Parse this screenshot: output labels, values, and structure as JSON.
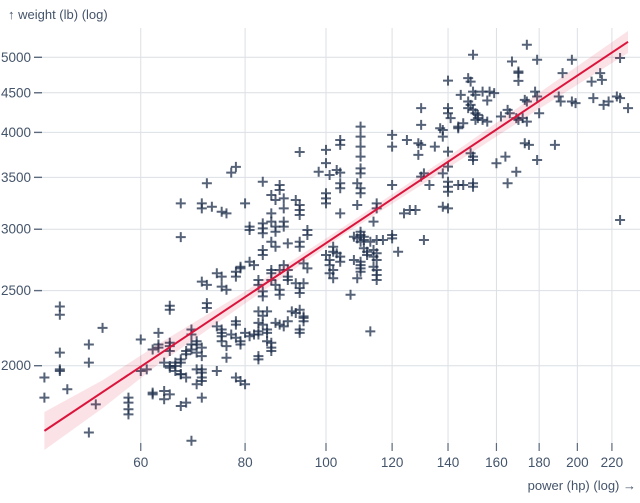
{
  "chart_data": {
    "type": "scatter",
    "x_axis": {
      "label": "power (hp) (log) →",
      "scale": "log",
      "ticks": [
        60,
        80,
        100,
        120,
        140,
        160,
        180,
        200,
        220
      ],
      "domain": [
        45,
        238
      ]
    },
    "y_axis": {
      "label": "↑ weight (lb) (log)",
      "scale": "log",
      "ticks": [
        2000,
        2500,
        3000,
        3500,
        4000,
        4500,
        5000
      ],
      "domain": [
        1550,
        5350
      ]
    },
    "marker": "plus",
    "grid": true,
    "colors": {
      "marker": "#1c2e4a",
      "marker_opacity": 0.75,
      "line": "#dc143c",
      "band_fill": "rgba(220,20,60,0.12)",
      "grid_line": "#dcdfe4",
      "tick": "#5c6a7d",
      "text": "#44546a"
    },
    "regression": {
      "type": "linear-regression (log-log)",
      "endpoints": [
        [
          46,
          1648
        ],
        [
          230,
          5236
        ]
      ],
      "confidence_band": [
        [
          46,
          1557,
          1743
        ],
        [
          54,
          1762,
          1915
        ],
        [
          63,
          2009,
          2133
        ],
        [
          80,
          2406,
          2493
        ],
        [
          105,
          2951,
          3022
        ],
        [
          139,
          3581,
          3700
        ],
        [
          180,
          4291,
          4501
        ],
        [
          230,
          5065,
          5406
        ]
      ]
    },
    "points": [
      [
        93,
        3774
      ],
      [
        100,
        3797
      ],
      [
        100,
        3651
      ],
      [
        104,
        3854
      ],
      [
        78,
        3611
      ],
      [
        150,
        5038
      ],
      [
        140,
        4666
      ],
      [
        148,
        4700
      ],
      [
        149,
        4652
      ],
      [
        145,
        4472
      ],
      [
        150,
        4516
      ],
      [
        151,
        4472
      ],
      [
        154,
        4516
      ],
      [
        156,
        4397
      ],
      [
        148,
        4384
      ],
      [
        149,
        4341
      ],
      [
        130,
        4299
      ],
      [
        140,
        4299
      ],
      [
        140,
        4235
      ],
      [
        141,
        4173
      ],
      [
        130,
        4090
      ],
      [
        137,
        4050
      ],
      [
        138,
        4029
      ],
      [
        144,
        4069
      ],
      [
        144,
        4050
      ],
      [
        146,
        4111
      ],
      [
        148,
        4299
      ],
      [
        150,
        4277
      ],
      [
        151,
        4235
      ],
      [
        151,
        4151
      ],
      [
        152,
        4214
      ],
      [
        152,
        4173
      ],
      [
        154,
        4151
      ],
      [
        156,
        4130
      ],
      [
        110,
        4069
      ],
      [
        110,
        3950
      ],
      [
        110,
        3834
      ],
      [
        104,
        3911
      ],
      [
        120,
        3970
      ],
      [
        120,
        3834
      ],
      [
        125,
        3911
      ],
      [
        129,
        3873
      ],
      [
        130,
        3854
      ],
      [
        129,
        3741
      ],
      [
        135,
        3834
      ],
      [
        138,
        3950
      ],
      [
        140,
        3778
      ],
      [
        140,
        3613
      ],
      [
        149,
        3760
      ],
      [
        150,
        3722
      ],
      [
        150,
        3685
      ],
      [
        110,
        3722
      ],
      [
        110,
        3595
      ],
      [
        174,
        5190
      ],
      [
        167,
        4938
      ],
      [
        179,
        4963
      ],
      [
        170,
        4793
      ],
      [
        170,
        4662
      ],
      [
        170,
        4774
      ],
      [
        197,
        4963
      ],
      [
        225,
        4990
      ],
      [
        192,
        4770
      ],
      [
        213,
        4770
      ],
      [
        208,
        4652
      ],
      [
        214,
        4676
      ],
      [
        157,
        4516
      ],
      [
        159,
        4495
      ],
      [
        178,
        4516
      ],
      [
        179,
        4450
      ],
      [
        173,
        4406
      ],
      [
        174,
        4384
      ],
      [
        190,
        4450
      ],
      [
        191,
        4384
      ],
      [
        197,
        4384
      ],
      [
        199,
        4363
      ],
      [
        209,
        4429
      ],
      [
        215,
        4341
      ],
      [
        218,
        4384
      ],
      [
        223,
        4450
      ],
      [
        225,
        4429
      ],
      [
        230,
        4299
      ],
      [
        165,
        4277
      ],
      [
        166,
        4235
      ],
      [
        169,
        4173
      ],
      [
        170,
        4151
      ],
      [
        172,
        4173
      ],
      [
        174,
        4130
      ],
      [
        180,
        4235
      ],
      [
        162,
        4193
      ],
      [
        173,
        3873
      ],
      [
        175,
        3854
      ],
      [
        188,
        3854
      ],
      [
        164,
        3722
      ],
      [
        179,
        3685
      ],
      [
        160,
        3650
      ],
      [
        67,
        3240
      ],
      [
        67,
        2930
      ],
      [
        65,
        2390
      ],
      [
        48,
        2385
      ],
      [
        77,
        3549
      ],
      [
        72,
        3439
      ],
      [
        84,
        3455
      ],
      [
        88,
        3421
      ],
      [
        88,
        3371
      ],
      [
        98,
        3559
      ],
      [
        101,
        3524
      ],
      [
        104,
        3549
      ],
      [
        86,
        3321
      ],
      [
        87,
        3272
      ],
      [
        89,
        3288
      ],
      [
        89,
        3192
      ],
      [
        71,
        3240
      ],
      [
        71,
        3192
      ],
      [
        73,
        3207
      ],
      [
        75,
        3160
      ],
      [
        76,
        3145
      ],
      [
        80,
        3240
      ],
      [
        92,
        3272
      ],
      [
        93,
        3224
      ],
      [
        93,
        3176
      ],
      [
        93,
        3129
      ],
      [
        100,
        3338
      ],
      [
        100,
        3288
      ],
      [
        100,
        3240
      ],
      [
        103,
        3577
      ],
      [
        81,
        3023
      ],
      [
        81,
        2993
      ],
      [
        84,
        3053
      ],
      [
        84,
        3008
      ],
      [
        84,
        2964
      ],
      [
        86,
        3145
      ],
      [
        86,
        3068
      ],
      [
        87,
        3023
      ],
      [
        87,
        2978
      ],
      [
        89,
        3068
      ],
      [
        89,
        3023
      ],
      [
        90,
        2877
      ],
      [
        86,
        2891
      ],
      [
        87,
        2848
      ],
      [
        84,
        2821
      ],
      [
        84,
        2779
      ],
      [
        95,
        2993
      ],
      [
        95,
        2949
      ],
      [
        102,
        2848
      ],
      [
        102,
        2806
      ],
      [
        93,
        2891
      ],
      [
        93,
        2848
      ],
      [
        74,
        2632
      ],
      [
        75,
        2606
      ],
      [
        71,
        2568
      ],
      [
        72,
        2543
      ],
      [
        78,
        2606
      ],
      [
        78,
        2644
      ],
      [
        79,
        2671
      ],
      [
        79,
        2684
      ],
      [
        81,
        2724
      ],
      [
        82,
        2697
      ],
      [
        72,
        2409
      ],
      [
        72,
        2374
      ],
      [
        75,
        2530
      ],
      [
        76,
        2506
      ],
      [
        83,
        2580
      ],
      [
        83,
        2543
      ],
      [
        84,
        2494
      ],
      [
        84,
        2457
      ],
      [
        86,
        2658
      ],
      [
        86,
        2632
      ],
      [
        86,
        2580
      ],
      [
        87,
        2543
      ],
      [
        88,
        2506
      ],
      [
        88,
        2469
      ],
      [
        88,
        2658
      ],
      [
        89,
        2697
      ],
      [
        90,
        2606
      ],
      [
        90,
        2580
      ],
      [
        90,
        2658
      ],
      [
        92,
        2555
      ],
      [
        93,
        2518
      ],
      [
        93,
        2482
      ],
      [
        94,
        2555
      ],
      [
        94,
        2711
      ],
      [
        95,
        2671
      ],
      [
        100,
        2779
      ],
      [
        101,
        2738
      ],
      [
        101,
        2697
      ],
      [
        102,
        2658
      ],
      [
        101,
        2632
      ],
      [
        102,
        2593
      ],
      [
        103,
        2793
      ],
      [
        110,
        3542
      ],
      [
        104,
        3439
      ],
      [
        104,
        3388
      ],
      [
        109,
        3439
      ],
      [
        110,
        3388
      ],
      [
        110,
        3338
      ],
      [
        120,
        3421
      ],
      [
        130,
        3507
      ],
      [
        131,
        3542
      ],
      [
        133,
        3421
      ],
      [
        138,
        3542
      ],
      [
        140,
        3455
      ],
      [
        140,
        3404
      ],
      [
        140,
        3354
      ],
      [
        144,
        3421
      ],
      [
        146,
        3421
      ],
      [
        150,
        3439
      ],
      [
        150,
        3404
      ],
      [
        109,
        3224
      ],
      [
        115,
        3240
      ],
      [
        115,
        3192
      ],
      [
        114,
        3068
      ],
      [
        104,
        3145
      ],
      [
        124,
        3145
      ],
      [
        126,
        3176
      ],
      [
        128,
        3176
      ],
      [
        138,
        3207
      ],
      [
        140,
        3192
      ],
      [
        108,
        2934
      ],
      [
        109,
        2920
      ],
      [
        110,
        2949
      ],
      [
        110,
        2978
      ],
      [
        111,
        2934
      ],
      [
        111,
        2906
      ],
      [
        110,
        2891
      ],
      [
        113,
        2891
      ],
      [
        115,
        2906
      ],
      [
        117,
        2906
      ],
      [
        120,
        2949
      ],
      [
        120,
        2920
      ],
      [
        131,
        2906
      ],
      [
        111,
        2835
      ],
      [
        112,
        2806
      ],
      [
        112,
        2779
      ],
      [
        114,
        2821
      ],
      [
        115,
        2793
      ],
      [
        122,
        2806
      ],
      [
        104,
        2765
      ],
      [
        104,
        2724
      ],
      [
        108,
        2738
      ],
      [
        110,
        2724
      ],
      [
        110,
        2697
      ],
      [
        110,
        2671
      ],
      [
        110,
        2644
      ],
      [
        114,
        2765
      ],
      [
        115,
        2738
      ],
      [
        114,
        2684
      ],
      [
        115,
        2658
      ],
      [
        115,
        2619
      ],
      [
        115,
        2580
      ],
      [
        109,
        2593
      ],
      [
        107,
        2469
      ],
      [
        169,
        3559
      ],
      [
        165,
        3439
      ],
      [
        225,
        3083
      ],
      [
        48,
        2327
      ],
      [
        54,
        2238
      ],
      [
        52,
        2130
      ],
      [
        52,
        2018
      ],
      [
        48,
        2079
      ],
      [
        48,
        1978
      ],
      [
        48,
        1969
      ],
      [
        46,
        1931
      ],
      [
        49,
        1865
      ],
      [
        46,
        1819
      ],
      [
        53,
        1783
      ],
      [
        60,
        2162
      ],
      [
        63,
        2205
      ],
      [
        63,
        2130
      ],
      [
        62,
        2099
      ],
      [
        63,
        2110
      ],
      [
        61,
        1978
      ],
      [
        60,
        1969
      ],
      [
        65,
        2362
      ],
      [
        65,
        2141
      ],
      [
        65,
        2120
      ],
      [
        65,
        2089
      ],
      [
        64,
        2018
      ],
      [
        65,
        1998
      ],
      [
        65,
        1988
      ],
      [
        66,
        2018
      ],
      [
        66,
        1998
      ],
      [
        66,
        1969
      ],
      [
        67,
        1950
      ],
      [
        67,
        2038
      ],
      [
        67,
        2018
      ],
      [
        68,
        2089
      ],
      [
        68,
        2069
      ],
      [
        67,
        1950
      ],
      [
        68,
        1931
      ],
      [
        62,
        1846
      ],
      [
        62,
        1837
      ],
      [
        64,
        1855
      ],
      [
        65,
        1837
      ],
      [
        64,
        1810
      ],
      [
        58,
        1819
      ],
      [
        58,
        1792
      ],
      [
        58,
        1757
      ],
      [
        58,
        1731
      ],
      [
        52,
        1640
      ],
      [
        68,
        1792
      ],
      [
        67,
        1774
      ],
      [
        83,
        2350
      ],
      [
        84,
        2320
      ],
      [
        85,
        2350
      ],
      [
        91,
        2350
      ],
      [
        92,
        2339
      ],
      [
        93,
        2362
      ],
      [
        94,
        2316
      ],
      [
        94,
        2282
      ],
      [
        94,
        2305
      ],
      [
        78,
        2282
      ],
      [
        78,
        2260
      ],
      [
        83,
        2271
      ],
      [
        84,
        2260
      ],
      [
        87,
        2271
      ],
      [
        88,
        2260
      ],
      [
        89,
        2248
      ],
      [
        90,
        2282
      ],
      [
        74,
        2248
      ],
      [
        75,
        2227
      ],
      [
        75,
        2205
      ],
      [
        75,
        2183
      ],
      [
        75,
        2151
      ],
      [
        76,
        2120
      ],
      [
        77,
        2194
      ],
      [
        78,
        2173
      ],
      [
        79,
        2151
      ],
      [
        79,
        2130
      ],
      [
        80,
        2205
      ],
      [
        81,
        2183
      ],
      [
        82,
        2194
      ],
      [
        83,
        2194
      ],
      [
        83,
        2215
      ],
      [
        85,
        2205
      ],
      [
        85,
        2227
      ],
      [
        93,
        2227
      ],
      [
        93,
        2205
      ],
      [
        85,
        2151
      ],
      [
        86,
        2141
      ],
      [
        86,
        2110
      ],
      [
        86,
        2089
      ],
      [
        83,
        2058
      ],
      [
        83,
        2038
      ],
      [
        76,
        2048
      ],
      [
        70,
        2151
      ],
      [
        70,
        2130
      ],
      [
        71,
        2110
      ],
      [
        70,
        2079
      ],
      [
        71,
        2058
      ],
      [
        69,
        2130
      ],
      [
        69,
        2099
      ],
      [
        69,
        2194
      ],
      [
        69,
        2227
      ],
      [
        70,
        1978
      ],
      [
        71,
        1959
      ],
      [
        71,
        1978
      ],
      [
        71,
        1931
      ],
      [
        71,
        1911
      ],
      [
        70,
        1893
      ],
      [
        74,
        1969
      ],
      [
        78,
        1931
      ],
      [
        79,
        1911
      ],
      [
        80,
        1893
      ],
      [
        71,
        1819
      ],
      [
        69,
        1600
      ],
      [
        113,
        2215
      ]
    ]
  }
}
